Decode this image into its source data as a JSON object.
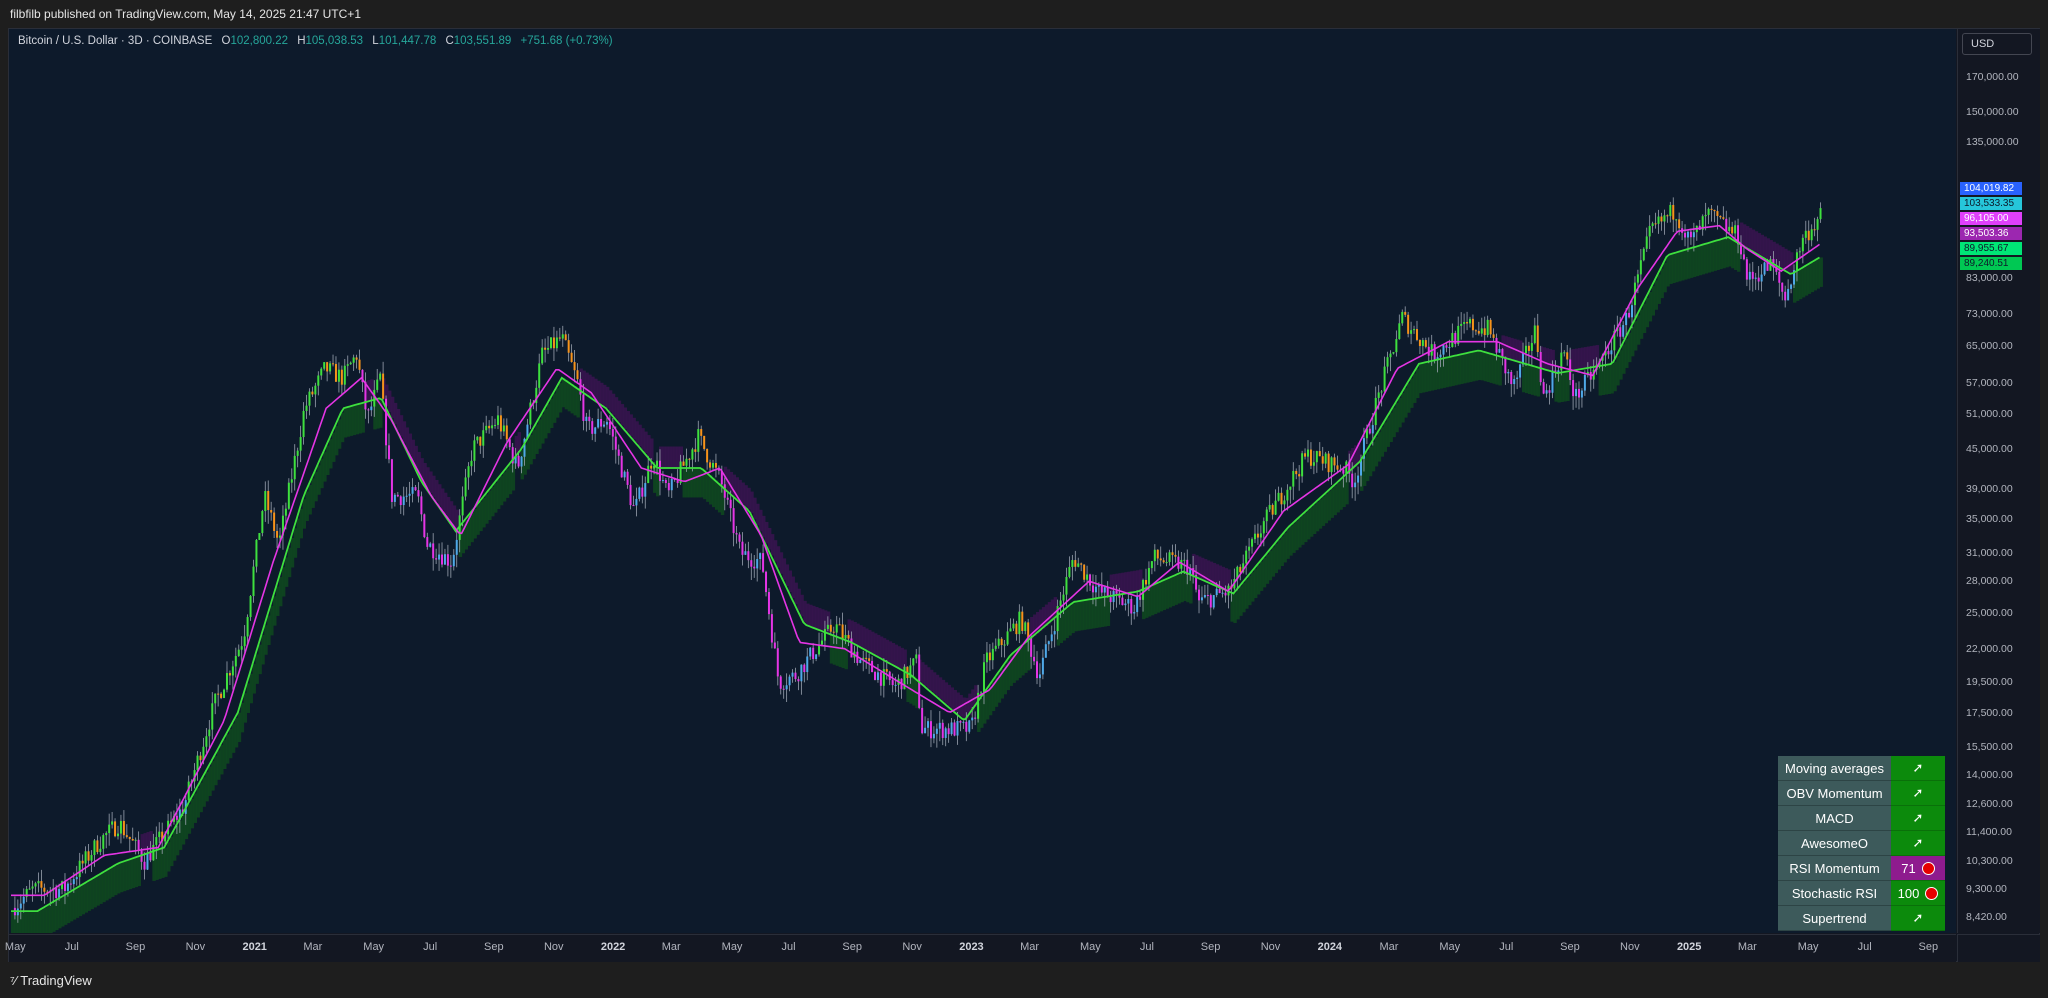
{
  "header": {
    "publisher": "filbfilb published on TradingView.com, May 14, 2025 21:47 UTC+1"
  },
  "legend": {
    "symbol": "Bitcoin / U.S. Dollar · 3D · COINBASE",
    "open_label": "O",
    "open": "102,800.22",
    "high_label": "H",
    "high": "105,038.53",
    "low_label": "L",
    "low": "101,447.78",
    "close_label": "C",
    "close": "103,551.89",
    "change": "+751.68 (+0.73%)"
  },
  "currency": "USD",
  "price_labels": [
    {
      "text": "104,019.82",
      "bg": "#2962ff",
      "fg": "#ffffff",
      "value": 104019.82
    },
    {
      "text": "103,533.35",
      "bg": "#26c6da",
      "fg": "#0d1a2b",
      "value": 103533.35
    },
    {
      "text": "96,105.00",
      "bg": "#e040fb",
      "fg": "#ffffff",
      "value": 96105
    },
    {
      "text": "93,503.36",
      "bg": "#9c27b0",
      "fg": "#ffffff",
      "value": 93503.36
    },
    {
      "text": "89,955.67",
      "bg": "#00e676",
      "fg": "#0d1a2b",
      "value": 89955.67
    },
    {
      "text": "89,240.51",
      "bg": "#00c853",
      "fg": "#0d1a2b",
      "value": 89240.51
    }
  ],
  "indicator_table": [
    {
      "name": "Moving averages",
      "value": "➚",
      "color": "green"
    },
    {
      "name": "OBV Momentum",
      "value": "➚",
      "color": "green"
    },
    {
      "name": "MACD",
      "value": "➚",
      "color": "green"
    },
    {
      "name": "AwesomeO",
      "value": "➚",
      "color": "green"
    },
    {
      "name": "RSI Momentum",
      "value": "71",
      "color": "purple",
      "dot": true
    },
    {
      "name": "Stochastic RSI",
      "value": "100",
      "color": "green",
      "dot": true
    },
    {
      "name": "Supertrend",
      "value": "➚",
      "color": "green"
    }
  ],
  "footer": {
    "brand": "TradingView"
  },
  "colors": {
    "up_strong": "#3ee03e",
    "up_weak": "#4fa9e8",
    "down_weak": "#f7931a",
    "down_strong": "#e535e5",
    "ma_fast": "#e535e5",
    "ma_slow": "#3ee03e",
    "cloud_green": "#0f4a1e",
    "cloud_purple": "#3a1450"
  },
  "chart_data": {
    "type": "candlestick",
    "title": "Bitcoin / U.S. Dollar · 3D · COINBASE",
    "y_scale": "log",
    "ylim": [
      8420,
      200000
    ],
    "xlim": [
      "2020-04-26",
      "2025-09-30"
    ],
    "y_ticks": [
      170000,
      150000,
      135000,
      115000,
      83000,
      73000,
      65000,
      57000,
      51000,
      45000,
      39000,
      35000,
      31000,
      28000,
      25000,
      22000,
      19500,
      17500,
      15500,
      14000,
      12600,
      11400,
      10300,
      9300,
      8420
    ],
    "y_tick_labels": [
      "170,000.00",
      "150,000.00",
      "135,000.00",
      "115,000.00",
      "83,000.00",
      "73,000.00",
      "65,000.00",
      "57,000.00",
      "51,000.00",
      "45,000.00",
      "39,000.00",
      "35,000.00",
      "31,000.00",
      "28,000.00",
      "25,000.00",
      "22,000.00",
      "19,500.00",
      "17,500.00",
      "15,500.00",
      "14,000.00",
      "12,600.00",
      "11,400.00",
      "10,300.00",
      "9,300.00",
      "8,420.00"
    ],
    "x_ticks": [
      {
        "date": "2020-05-01",
        "label": "May",
        "year": false
      },
      {
        "date": "2020-07-01",
        "label": "Jul",
        "year": false
      },
      {
        "date": "2020-09-01",
        "label": "Sep",
        "year": false
      },
      {
        "date": "2020-11-01",
        "label": "Nov",
        "year": false
      },
      {
        "date": "2021-01-01",
        "label": "2021",
        "year": true
      },
      {
        "date": "2021-03-01",
        "label": "Mar",
        "year": false
      },
      {
        "date": "2021-05-01",
        "label": "May",
        "year": false
      },
      {
        "date": "2021-07-01",
        "label": "Jul",
        "year": false
      },
      {
        "date": "2021-09-01",
        "label": "Sep",
        "year": false
      },
      {
        "date": "2021-11-01",
        "label": "Nov",
        "year": false
      },
      {
        "date": "2022-01-01",
        "label": "2022",
        "year": true
      },
      {
        "date": "2022-03-01",
        "label": "Mar",
        "year": false
      },
      {
        "date": "2022-05-01",
        "label": "May",
        "year": false
      },
      {
        "date": "2022-07-01",
        "label": "Jul",
        "year": false
      },
      {
        "date": "2022-09-01",
        "label": "Sep",
        "year": false
      },
      {
        "date": "2022-11-01",
        "label": "Nov",
        "year": false
      },
      {
        "date": "2023-01-01",
        "label": "2023",
        "year": true
      },
      {
        "date": "2023-03-01",
        "label": "Mar",
        "year": false
      },
      {
        "date": "2023-05-01",
        "label": "May",
        "year": false
      },
      {
        "date": "2023-07-01",
        "label": "Jul",
        "year": false
      },
      {
        "date": "2023-09-01",
        "label": "Sep",
        "year": false
      },
      {
        "date": "2023-11-01",
        "label": "Nov",
        "year": false
      },
      {
        "date": "2024-01-01",
        "label": "2024",
        "year": true
      },
      {
        "date": "2024-03-01",
        "label": "Mar",
        "year": false
      },
      {
        "date": "2024-05-01",
        "label": "May",
        "year": false
      },
      {
        "date": "2024-07-01",
        "label": "Jul",
        "year": false
      },
      {
        "date": "2024-09-01",
        "label": "Sep",
        "year": false
      },
      {
        "date": "2024-11-01",
        "label": "Nov",
        "year": false
      },
      {
        "date": "2025-01-01",
        "label": "2025",
        "year": true
      },
      {
        "date": "2025-03-01",
        "label": "Mar",
        "year": false
      },
      {
        "date": "2025-05-01",
        "label": "May",
        "year": false
      },
      {
        "date": "2025-07-01",
        "label": "Jul",
        "year": false
      },
      {
        "date": "2025-09-01",
        "label": "Sep",
        "year": false
      }
    ],
    "price_anchors": [
      [
        "2020-04-28",
        8700
      ],
      [
        "2020-05-20",
        9300
      ],
      [
        "2020-06-20",
        9300
      ],
      [
        "2020-07-25",
        11000
      ],
      [
        "2020-08-15",
        11800
      ],
      [
        "2020-09-10",
        10300
      ],
      [
        "2020-10-20",
        12500
      ],
      [
        "2020-11-20",
        18000
      ],
      [
        "2020-12-20",
        23000
      ],
      [
        "2021-01-10",
        38000
      ],
      [
        "2021-01-25",
        32000
      ],
      [
        "2021-02-20",
        52000
      ],
      [
        "2021-03-13",
        60000
      ],
      [
        "2021-03-31",
        58000
      ],
      [
        "2021-04-14",
        63000
      ],
      [
        "2021-04-25",
        50000
      ],
      [
        "2021-05-08",
        58000
      ],
      [
        "2021-05-20",
        38000
      ],
      [
        "2021-06-15",
        38000
      ],
      [
        "2021-06-25",
        32000
      ],
      [
        "2021-07-20",
        30000
      ],
      [
        "2021-08-10",
        45000
      ],
      [
        "2021-09-05",
        50000
      ],
      [
        "2021-09-25",
        42000
      ],
      [
        "2021-10-20",
        63000
      ],
      [
        "2021-11-09",
        67000
      ],
      [
        "2021-11-25",
        57000
      ],
      [
        "2021-12-05",
        48000
      ],
      [
        "2021-12-25",
        50000
      ],
      [
        "2022-01-22",
        36000
      ],
      [
        "2022-02-10",
        44000
      ],
      [
        "2022-02-25",
        38000
      ],
      [
        "2022-03-28",
        47000
      ],
      [
        "2022-04-20",
        40000
      ],
      [
        "2022-05-10",
        31000
      ],
      [
        "2022-06-01",
        30000
      ],
      [
        "2022-06-18",
        19500
      ],
      [
        "2022-07-05",
        20000
      ],
      [
        "2022-08-14",
        24000
      ],
      [
        "2022-09-10",
        21000
      ],
      [
        "2022-10-15",
        19200
      ],
      [
        "2022-11-05",
        21000
      ],
      [
        "2022-11-10",
        16500
      ],
      [
        "2022-12-31",
        16500
      ],
      [
        "2023-01-15",
        21000
      ],
      [
        "2023-02-20",
        24500
      ],
      [
        "2023-03-10",
        20000
      ],
      [
        "2023-04-14",
        30500
      ],
      [
        "2023-05-10",
        27000
      ],
      [
        "2023-06-15",
        25500
      ],
      [
        "2023-07-05",
        30500
      ],
      [
        "2023-08-10",
        29500
      ],
      [
        "2023-08-20",
        26000
      ],
      [
        "2023-09-20",
        27000
      ],
      [
        "2023-10-25",
        34500
      ],
      [
        "2023-12-08",
        44000
      ],
      [
        "2024-01-15",
        42000
      ],
      [
        "2024-01-25",
        40000
      ],
      [
        "2024-02-15",
        52000
      ],
      [
        "2024-03-14",
        72000
      ],
      [
        "2024-04-15",
        63000
      ],
      [
        "2024-05-20",
        70000
      ],
      [
        "2024-06-10",
        69000
      ],
      [
        "2024-07-05",
        56000
      ],
      [
        "2024-07-28",
        69000
      ],
      [
        "2024-08-05",
        54000
      ],
      [
        "2024-08-25",
        64000
      ],
      [
        "2024-09-06",
        54000
      ],
      [
        "2024-10-01",
        61000
      ],
      [
        "2024-10-29",
        72000
      ],
      [
        "2024-11-22",
        98000
      ],
      [
        "2024-12-17",
        106000
      ],
      [
        "2025-01-01",
        94000
      ],
      [
        "2025-01-20",
        104000
      ],
      [
        "2025-02-20",
        96000
      ],
      [
        "2025-03-01",
        82000
      ],
      [
        "2025-03-25",
        87000
      ],
      [
        "2025-04-08",
        77000
      ],
      [
        "2025-04-25",
        95000
      ],
      [
        "2025-05-14",
        103551.89
      ]
    ],
    "ma_fast_anchors": [
      [
        "2020-06-01",
        9100
      ],
      [
        "2020-08-01",
        10500
      ],
      [
        "2020-09-25",
        10800
      ],
      [
        "2020-12-01",
        17000
      ],
      [
        "2021-01-20",
        30000
      ],
      [
        "2021-03-15",
        52000
      ],
      [
        "2021-04-20",
        58000
      ],
      [
        "2021-05-20",
        50000
      ],
      [
        "2021-06-30",
        38000
      ],
      [
        "2021-07-30",
        33000
      ],
      [
        "2021-09-15",
        46000
      ],
      [
        "2021-11-05",
        60000
      ],
      [
        "2021-12-10",
        55000
      ],
      [
        "2022-01-30",
        42000
      ],
      [
        "2022-03-15",
        40000
      ],
      [
        "2022-04-20",
        42000
      ],
      [
        "2022-06-01",
        33000
      ],
      [
        "2022-07-10",
        22500
      ],
      [
        "2022-08-25",
        22000
      ],
      [
        "2022-10-20",
        19500
      ],
      [
        "2022-12-10",
        17500
      ],
      [
        "2023-01-20",
        19000
      ],
      [
        "2023-03-01",
        23000
      ],
      [
        "2023-05-01",
        28000
      ],
      [
        "2023-06-20",
        26500
      ],
      [
        "2023-08-01",
        30000
      ],
      [
        "2023-09-20",
        27000
      ],
      [
        "2023-11-15",
        36000
      ],
      [
        "2024-01-20",
        42500
      ],
      [
        "2024-03-10",
        60000
      ],
      [
        "2024-05-01",
        66000
      ],
      [
        "2024-06-20",
        66000
      ],
      [
        "2024-08-10",
        61000
      ],
      [
        "2024-09-25",
        58500
      ],
      [
        "2024-11-10",
        80000
      ],
      [
        "2024-12-20",
        98000
      ],
      [
        "2025-02-01",
        100000
      ],
      [
        "2025-03-01",
        92000
      ],
      [
        "2025-04-05",
        85000
      ],
      [
        "2025-05-14",
        93500
      ]
    ],
    "ma_slow_anchors": [
      [
        "2020-05-25",
        8600
      ],
      [
        "2020-08-15",
        10200
      ],
      [
        "2020-10-01",
        10800
      ],
      [
        "2020-12-15",
        17500
      ],
      [
        "2021-02-20",
        38000
      ],
      [
        "2021-04-01",
        52000
      ],
      [
        "2021-05-10",
        54000
      ],
      [
        "2021-06-20",
        40000
      ],
      [
        "2021-07-25",
        33500
      ],
      [
        "2021-09-30",
        45000
      ],
      [
        "2021-11-10",
        58000
      ],
      [
        "2021-12-25",
        52000
      ],
      [
        "2022-02-15",
        42000
      ],
      [
        "2022-04-01",
        42000
      ],
      [
        "2022-05-20",
        36000
      ],
      [
        "2022-07-15",
        24000
      ],
      [
        "2022-09-01",
        22500
      ],
      [
        "2022-11-01",
        20000
      ],
      [
        "2022-12-25",
        17000
      ],
      [
        "2023-02-10",
        21500
      ],
      [
        "2023-04-15",
        26000
      ],
      [
        "2023-06-20",
        27000
      ],
      [
        "2023-08-05",
        29000
      ],
      [
        "2023-09-25",
        26800
      ],
      [
        "2023-11-20",
        34000
      ],
      [
        "2024-02-01",
        43000
      ],
      [
        "2024-04-01",
        61000
      ],
      [
        "2024-06-01",
        64000
      ],
      [
        "2024-08-20",
        59000
      ],
      [
        "2024-10-15",
        61000
      ],
      [
        "2024-12-10",
        90000
      ],
      [
        "2025-02-10",
        96000
      ],
      [
        "2025-04-15",
        84000
      ],
      [
        "2025-05-14",
        89240.51
      ]
    ]
  }
}
